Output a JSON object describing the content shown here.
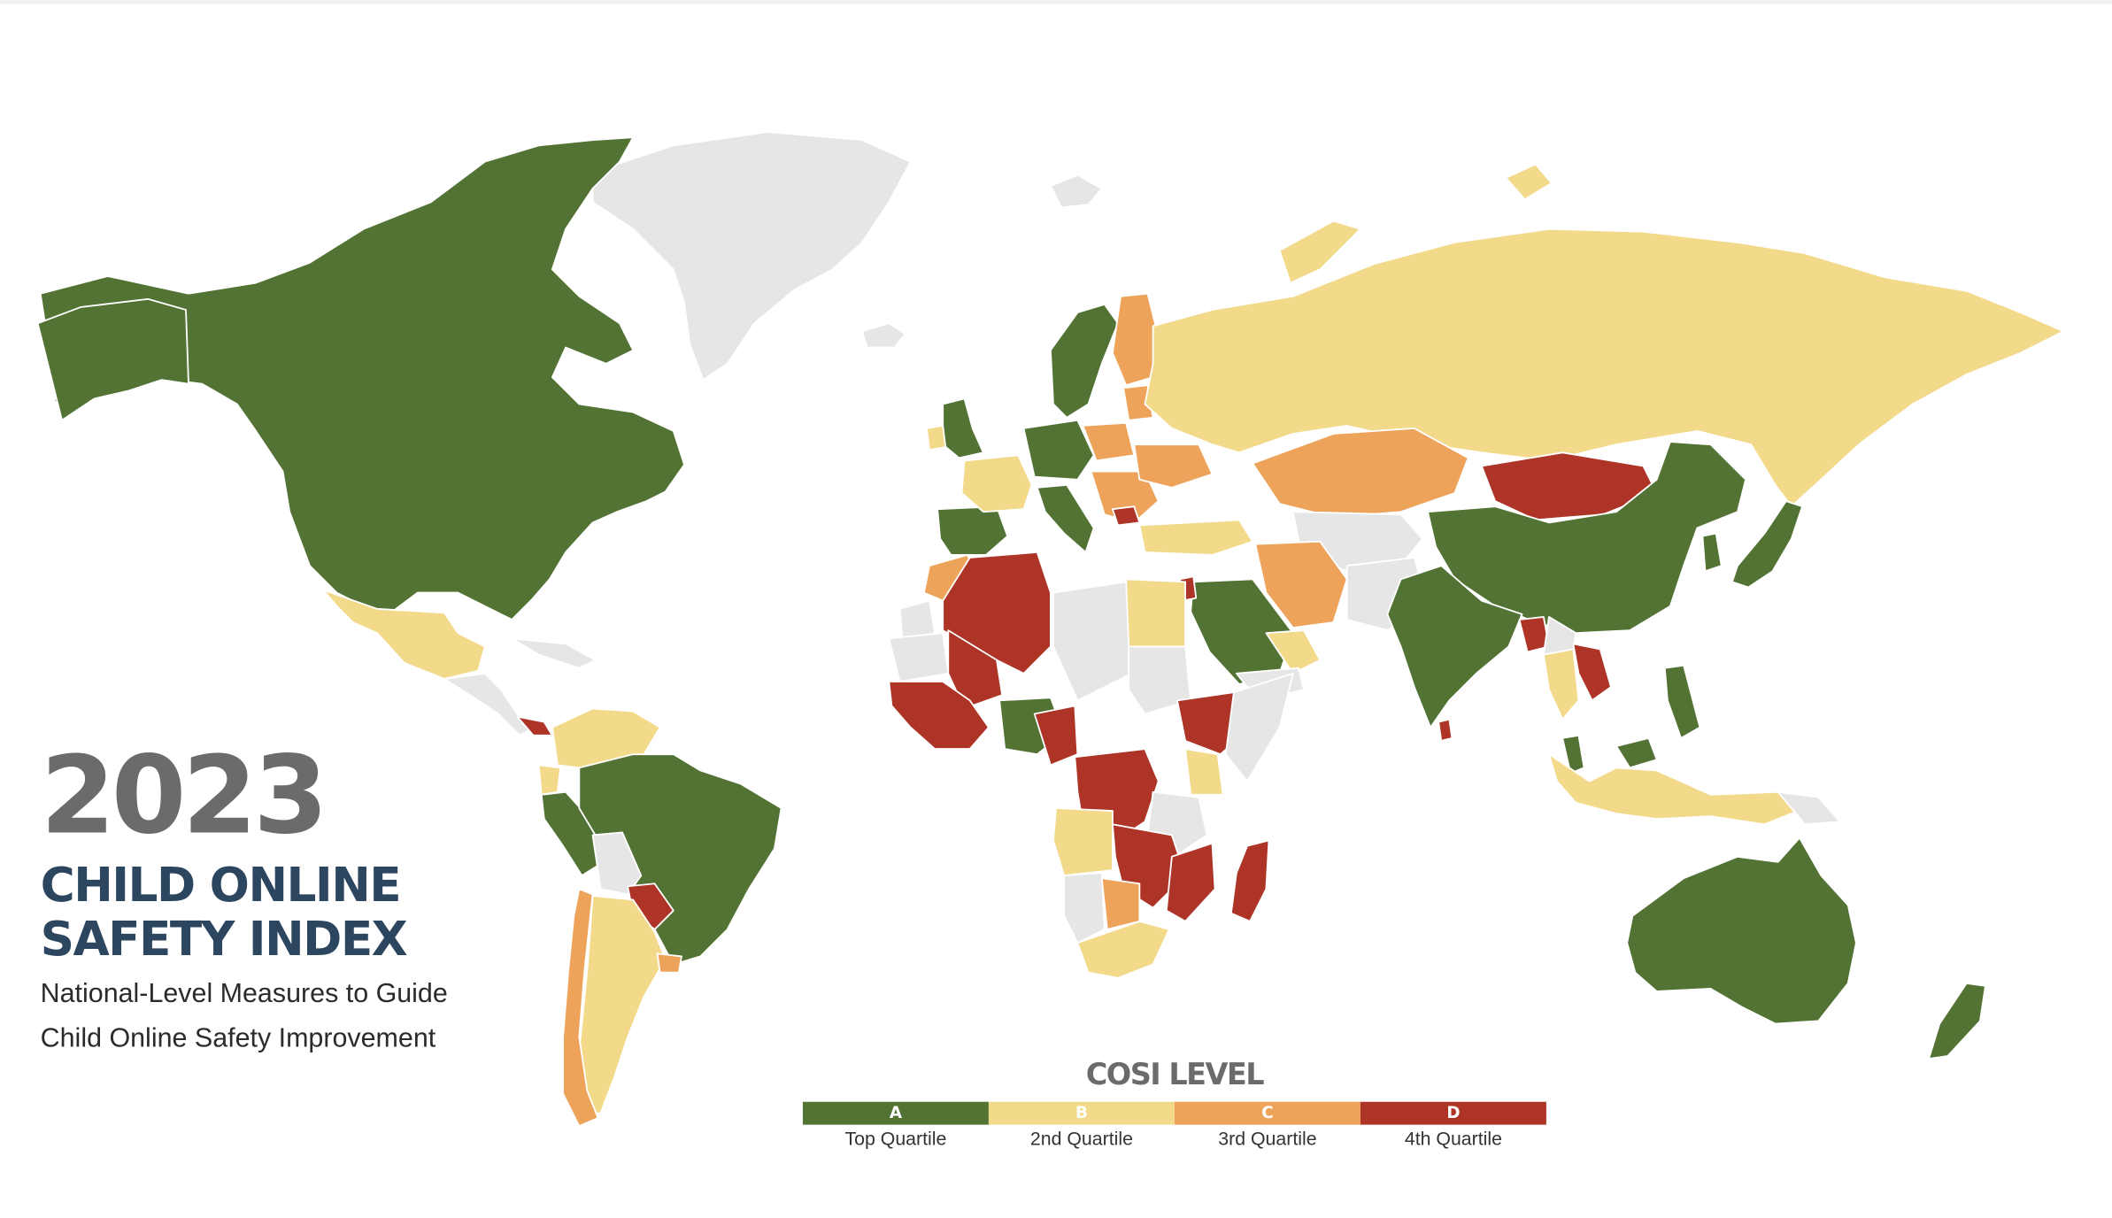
{
  "title": {
    "year": "2023",
    "line1": "CHILD ONLINE",
    "line2": "SAFETY INDEX",
    "sub1": "National-Level Measures to Guide",
    "sub2": "Child Online Safety Improvement"
  },
  "legend": {
    "title": "COSI LEVEL",
    "levels": [
      {
        "code": "A",
        "label": "Top Quartile",
        "color": "#537335"
      },
      {
        "code": "B",
        "label": "2nd Quartile",
        "color": "#f3d98a"
      },
      {
        "code": "C",
        "label": "3rd Quartile",
        "color": "#eea35a"
      },
      {
        "code": "D",
        "label": "4th Quartile",
        "color": "#ad3427"
      }
    ]
  },
  "map_colors": {
    "no_data": "#e6e6e6",
    "A": "#537335",
    "B": "#f3d98a",
    "C": "#eea35a",
    "D": "#ad3427"
  }
}
